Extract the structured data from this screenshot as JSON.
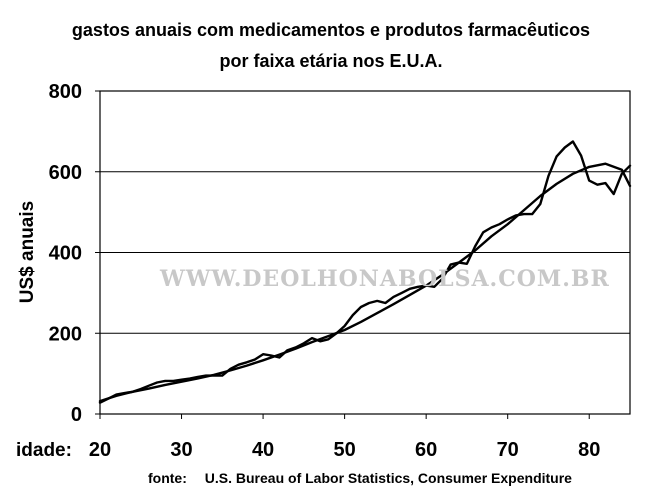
{
  "chart_data": {
    "type": "line",
    "title": "gastos anuais com medicamentos e produtos farmacêuticos",
    "subtitle": "por faixa etária nos E.U.A.",
    "ylabel": "US$ anuais",
    "xlabel": "idade:",
    "xlim": [
      20,
      85
    ],
    "ylim": [
      0,
      800
    ],
    "x_ticks": [
      20,
      30,
      40,
      50,
      60,
      70,
      80
    ],
    "y_ticks": [
      0,
      200,
      400,
      600,
      800
    ],
    "grid": true,
    "legend": "none",
    "series": [
      {
        "x": [
          20,
          21,
          22,
          23,
          24,
          25,
          26,
          27,
          28,
          29,
          30,
          31,
          32,
          33,
          34,
          35,
          36,
          37,
          38,
          39,
          40,
          41,
          42,
          43,
          44,
          45,
          46,
          47,
          48,
          49,
          50,
          51,
          52,
          53,
          54,
          55,
          56,
          57,
          58,
          59,
          60,
          61,
          62,
          63,
          64,
          65,
          66,
          67,
          68,
          69,
          70,
          71,
          72,
          73,
          74,
          75,
          76,
          77,
          78,
          79,
          80,
          81,
          82,
          83,
          84,
          85
        ],
        "y": [
          28,
          38,
          48,
          52,
          55,
          62,
          70,
          78,
          82,
          82,
          85,
          88,
          92,
          95,
          95,
          95,
          112,
          122,
          128,
          135,
          148,
          145,
          140,
          158,
          165,
          175,
          188,
          180,
          185,
          200,
          218,
          245,
          265,
          275,
          280,
          275,
          290,
          300,
          310,
          315,
          318,
          315,
          335,
          370,
          375,
          372,
          415,
          450,
          462,
          470,
          482,
          492,
          495,
          495,
          520,
          590,
          638,
          660,
          675,
          640,
          578,
          568,
          572,
          545,
          595,
          615
        ]
      },
      {
        "x": [
          20,
          22,
          24,
          26,
          28,
          30,
          32,
          34,
          36,
          38,
          40,
          42,
          44,
          46,
          48,
          50,
          52,
          54,
          56,
          58,
          60,
          62,
          64,
          66,
          68,
          70,
          72,
          74,
          76,
          78,
          80,
          82,
          84,
          85
        ],
        "y": [
          32,
          45,
          55,
          63,
          72,
          80,
          88,
          97,
          108,
          120,
          133,
          147,
          162,
          178,
          193,
          208,
          228,
          250,
          272,
          295,
          318,
          345,
          375,
          405,
          440,
          470,
          505,
          540,
          570,
          595,
          612,
          620,
          605,
          565
        ]
      }
    ],
    "source_label": "fonte:",
    "source_text": "U.S. Bureau of Labor Statistics, Consumer Expenditure",
    "watermark": "WWW.DEOLHONABOLSA.COM.BR"
  }
}
